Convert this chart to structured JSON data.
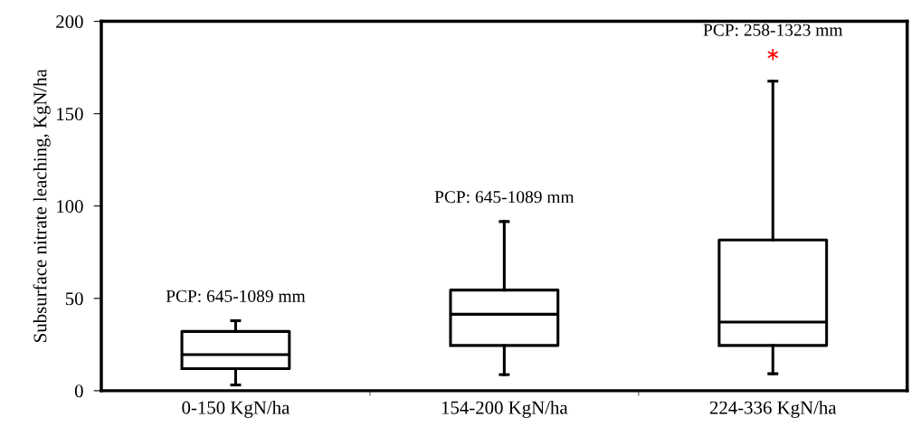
{
  "chart_data": {
    "type": "box",
    "ylabel": "Subsurface nitrate leaching, KgN/ha",
    "categories": [
      "0-150 KgN/ha",
      "154-200 KgN/ha",
      "224-336 KgN/ha"
    ],
    "boxes": [
      {
        "low": 3.1,
        "q1": 11.9,
        "median": 19.5,
        "q3": 32.1,
        "high": 37.9
      },
      {
        "low": 8.7,
        "q1": 24.5,
        "median": 41.4,
        "q3": 54.5,
        "high": 91.6
      },
      {
        "low": 9.2,
        "q1": 24.5,
        "median": 37.2,
        "q3": 81.6,
        "high": 167.6,
        "outliers": [
          182
        ]
      }
    ],
    "ylim": [
      0,
      200
    ],
    "yticks": [
      0,
      50,
      100,
      150,
      200
    ],
    "annotations": [
      "PCP: 645-1089 mm",
      "PCP: 645-1089 mm",
      "PCP: 258-1323 mm"
    ],
    "grid": false
  }
}
